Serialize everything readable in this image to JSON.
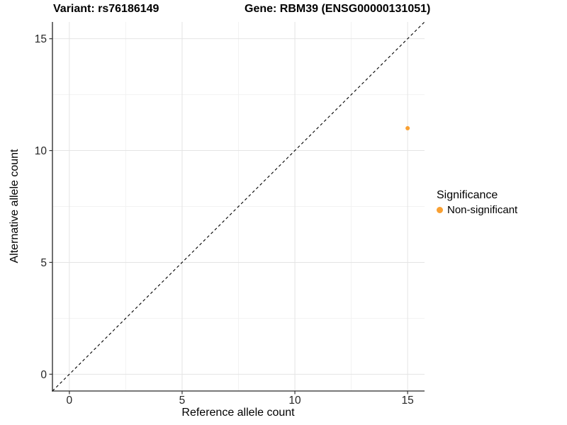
{
  "chart_data": {
    "type": "scatter",
    "title_left": "Variant: rs76186149",
    "title_right": "Gene: RBM39 (ENSG00000131051)",
    "xlabel": "Reference allele count",
    "ylabel": "Alternative allele count",
    "xlim": [
      -0.75,
      15.75
    ],
    "ylim": [
      -0.75,
      15.75
    ],
    "x_ticks": [
      0,
      5,
      10,
      15
    ],
    "y_ticks": [
      0,
      5,
      10,
      15
    ],
    "x_minor_ticks": [
      2.5,
      7.5,
      12.5
    ],
    "y_minor_ticks": [
      2.5,
      7.5,
      12.5
    ],
    "grid": "major+minor",
    "series": [
      {
        "name": "Non-significant",
        "color": "#F9A032",
        "points": [
          {
            "x": 15,
            "y": 11
          }
        ]
      }
    ],
    "reference_line": {
      "slope": 1,
      "intercept": 0,
      "style": "dashed",
      "color": "#000000"
    },
    "legend": {
      "title": "Significance",
      "position": "right",
      "items": [
        {
          "label": "Non-significant",
          "color": "#F9A032"
        }
      ]
    }
  },
  "colors": {
    "background": "#FFFFFF",
    "grid_major": "#E4E4E4",
    "grid_minor": "#F2F2F2",
    "axis_line": "#4D4D4D",
    "tick_mark": "#333333",
    "tick_text": "#262626",
    "point": "#F9A032"
  }
}
